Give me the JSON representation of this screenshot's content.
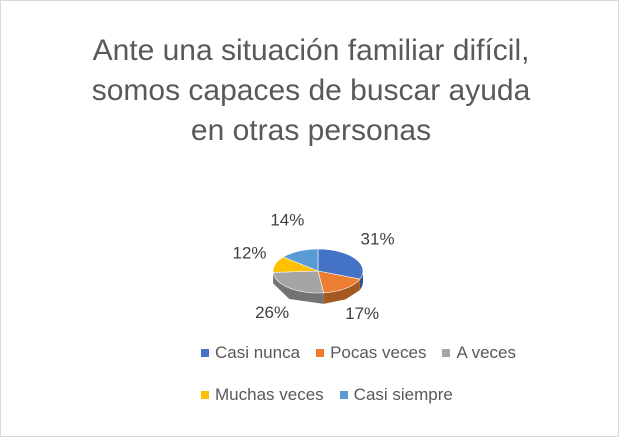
{
  "chart_data": {
    "type": "pie3d",
    "title": "Ante una situación familiar difícil, somos capaces de buscar ayuda en otras personas",
    "categories": [
      "Casi nunca",
      "Pocas veces",
      "A veces",
      "Muchas veces",
      "Casi siempre"
    ],
    "values": [
      31,
      17,
      26,
      12,
      14
    ],
    "value_labels": [
      "31%",
      "17%",
      "26%",
      "12%",
      "14%"
    ],
    "colors": [
      "#4472c4",
      "#ed7d31",
      "#a5a5a5",
      "#ffc000",
      "#5b9bd5"
    ],
    "legend": "bottom"
  }
}
